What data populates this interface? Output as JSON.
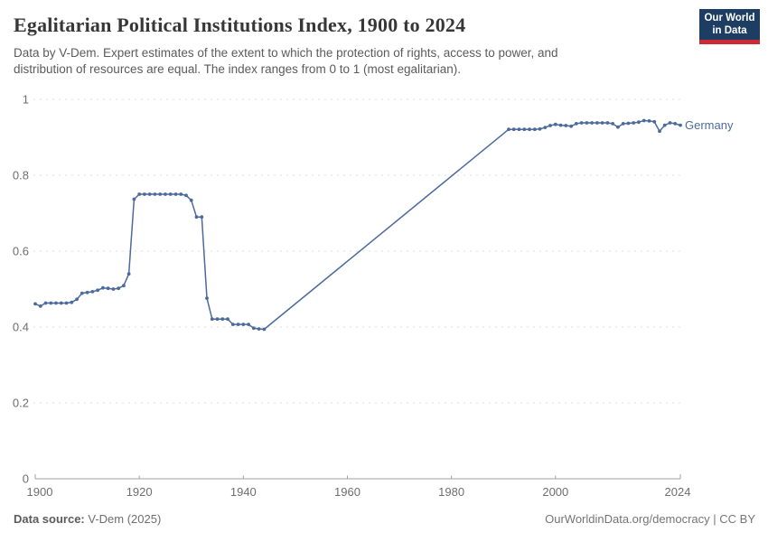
{
  "header": {
    "title": "Egalitarian Political Institutions Index, 1900 to 2024",
    "subtitle": "Data by V-Dem. Expert estimates of the extent to which the protection of rights, access to power, and distribution of resources are equal. The index ranges from 0 to 1 (most egalitarian).",
    "logo": {
      "line1": "Our World",
      "line2": "in Data",
      "bg_color": "#1d3d63",
      "accent_color": "#cc2a36"
    }
  },
  "footer": {
    "source_label": "Data source:",
    "source_value": " V-Dem (2025)",
    "right_text": "OurWorldinData.org/democracy | CC BY"
  },
  "chart_data": {
    "type": "line",
    "title": "Egalitarian Political Institutions Index, 1900 to 2024",
    "xlabel": "",
    "ylabel": "",
    "xlim": [
      1900,
      2024
    ],
    "ylim": [
      0,
      1
    ],
    "x_ticks": [
      1900,
      1920,
      1940,
      1960,
      1980,
      2000,
      2024
    ],
    "y_ticks": [
      0,
      0.2,
      0.4,
      0.6,
      0.8,
      1
    ],
    "y_tick_labels": [
      "0",
      "0.2",
      "0.4",
      "0.6",
      "0.8",
      "1"
    ],
    "grid": "horizontal-dashed",
    "grid_color": "#dcdcdc",
    "axis_color": "#a1a1a1",
    "tick_label_color": "#6e6e6e",
    "legend_position": "end-of-line",
    "series": [
      {
        "name": "Germany",
        "color": "#4c6a9c",
        "segments": [
          {
            "points": [
              [
                1900,
                0.461
              ],
              [
                1901,
                0.455
              ],
              [
                1902,
                0.463
              ],
              [
                1903,
                0.463
              ],
              [
                1904,
                0.463
              ],
              [
                1905,
                0.463
              ],
              [
                1906,
                0.463
              ],
              [
                1907,
                0.465
              ],
              [
                1908,
                0.473
              ],
              [
                1909,
                0.489
              ],
              [
                1910,
                0.491
              ],
              [
                1911,
                0.493
              ],
              [
                1912,
                0.497
              ],
              [
                1913,
                0.503
              ],
              [
                1914,
                0.502
              ],
              [
                1915,
                0.5
              ],
              [
                1916,
                0.502
              ],
              [
                1917,
                0.509
              ],
              [
                1918,
                0.54
              ],
              [
                1919,
                0.737
              ],
              [
                1920,
                0.75
              ],
              [
                1921,
                0.75
              ],
              [
                1922,
                0.75
              ],
              [
                1923,
                0.75
              ],
              [
                1924,
                0.75
              ],
              [
                1925,
                0.75
              ],
              [
                1926,
                0.75
              ],
              [
                1927,
                0.75
              ],
              [
                1928,
                0.75
              ],
              [
                1929,
                0.747
              ],
              [
                1930,
                0.734
              ],
              [
                1931,
                0.69
              ],
              [
                1932,
                0.69
              ],
              [
                1933,
                0.476
              ],
              [
                1934,
                0.421
              ],
              [
                1935,
                0.421
              ],
              [
                1936,
                0.421
              ],
              [
                1937,
                0.421
              ],
              [
                1938,
                0.407
              ],
              [
                1939,
                0.407
              ],
              [
                1940,
                0.407
              ],
              [
                1941,
                0.407
              ],
              [
                1942,
                0.397
              ],
              [
                1943,
                0.395
              ],
              [
                1944,
                0.394
              ]
            ]
          },
          {
            "points": [
              [
                1991,
                0.921
              ],
              [
                1992,
                0.921
              ],
              [
                1993,
                0.921
              ],
              [
                1994,
                0.921
              ],
              [
                1995,
                0.921
              ],
              [
                1996,
                0.921
              ],
              [
                1997,
                0.922
              ],
              [
                1998,
                0.926
              ],
              [
                1999,
                0.931
              ],
              [
                2000,
                0.934
              ],
              [
                2001,
                0.932
              ],
              [
                2002,
                0.931
              ],
              [
                2003,
                0.929
              ],
              [
                2004,
                0.936
              ],
              [
                2005,
                0.938
              ],
              [
                2006,
                0.938
              ],
              [
                2007,
                0.938
              ],
              [
                2008,
                0.938
              ],
              [
                2009,
                0.938
              ],
              [
                2010,
                0.938
              ],
              [
                2011,
                0.936
              ],
              [
                2012,
                0.927
              ],
              [
                2013,
                0.936
              ],
              [
                2014,
                0.937
              ],
              [
                2015,
                0.938
              ],
              [
                2016,
                0.94
              ],
              [
                2017,
                0.944
              ],
              [
                2018,
                0.943
              ],
              [
                2019,
                0.941
              ],
              [
                2020,
                0.916
              ],
              [
                2021,
                0.932
              ],
              [
                2022,
                0.938
              ],
              [
                2023,
                0.936
              ],
              [
                2024,
                0.932
              ]
            ]
          }
        ]
      }
    ]
  }
}
